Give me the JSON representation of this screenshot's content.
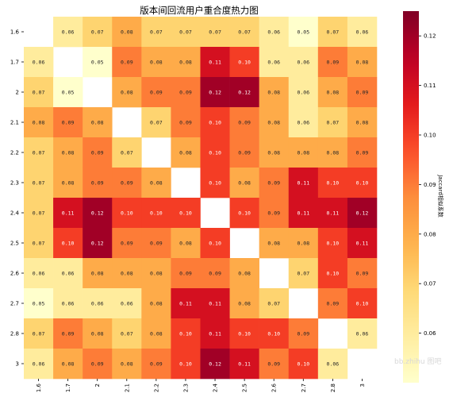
{
  "chart_data": {
    "type": "heatmap",
    "title": "版本间回流用户重合度热力图",
    "categories": [
      "1.6",
      "1.7",
      "2",
      "2.1",
      "2.2",
      "2.3",
      "2.4",
      "2.5",
      "2.6",
      "2.7",
      "2.8",
      "3"
    ],
    "matrix": [
      [
        null,
        0.06,
        0.07,
        0.08,
        0.07,
        0.07,
        0.07,
        0.07,
        0.06,
        0.05,
        0.07,
        0.06
      ],
      [
        0.06,
        null,
        0.05,
        0.09,
        0.08,
        0.08,
        0.11,
        0.1,
        0.06,
        0.06,
        0.09,
        0.08
      ],
      [
        0.07,
        0.05,
        null,
        0.08,
        0.09,
        0.09,
        0.12,
        0.12,
        0.08,
        0.06,
        0.08,
        0.09
      ],
      [
        0.08,
        0.09,
        0.08,
        null,
        0.07,
        0.09,
        0.1,
        0.09,
        0.08,
        0.06,
        0.07,
        0.08
      ],
      [
        0.07,
        0.08,
        0.09,
        0.07,
        null,
        0.08,
        0.1,
        0.09,
        0.08,
        0.08,
        0.08,
        0.09
      ],
      [
        0.07,
        0.08,
        0.09,
        0.09,
        0.08,
        null,
        0.1,
        0.08,
        0.09,
        0.11,
        0.1,
        0.1
      ],
      [
        0.07,
        0.11,
        0.12,
        0.1,
        0.1,
        0.1,
        null,
        0.1,
        0.09,
        0.11,
        0.11,
        0.12
      ],
      [
        0.07,
        0.1,
        0.12,
        0.09,
        0.09,
        0.08,
        0.1,
        null,
        0.08,
        0.08,
        0.1,
        0.11
      ],
      [
        0.06,
        0.06,
        0.08,
        0.08,
        0.08,
        0.09,
        0.09,
        0.08,
        null,
        0.07,
        0.1,
        0.09
      ],
      [
        0.05,
        0.06,
        0.06,
        0.06,
        0.08,
        0.11,
        0.11,
        0.08,
        0.07,
        null,
        0.09,
        0.1
      ],
      [
        0.07,
        0.09,
        0.08,
        0.07,
        0.08,
        0.1,
        0.11,
        0.1,
        0.1,
        0.09,
        null,
        0.06
      ],
      [
        0.06,
        0.08,
        0.09,
        0.08,
        0.09,
        0.1,
        0.12,
        0.11,
        0.09,
        0.1,
        0.06,
        null
      ]
    ],
    "colorbar": {
      "label": "Jaccard相似系数",
      "ticks": [
        0.06,
        0.07,
        0.08,
        0.09,
        0.1,
        0.11,
        0.12
      ],
      "tick_labels": [
        "0.06",
        "0.07",
        "0.08",
        "0.09",
        "0.10",
        "0.11",
        "0.12"
      ],
      "range": [
        0.05,
        0.125
      ],
      "colormap": "YlOrRd"
    },
    "legend": "right"
  },
  "watermark": "bb.zhihu 图吧"
}
